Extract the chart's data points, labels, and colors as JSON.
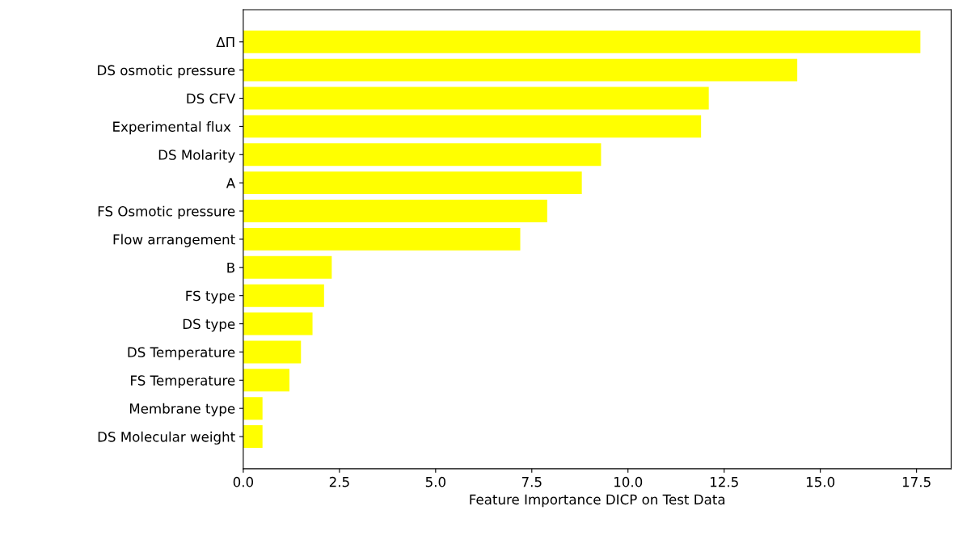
{
  "chart_data": {
    "type": "bar",
    "orientation": "horizontal",
    "xlabel": "Feature Importance DICP on Test Data",
    "categories": [
      "ΔΠ",
      "DS osmotic pressure",
      "DS CFV",
      "Experimental flux ",
      "DS Molarity",
      "A",
      "FS Osmotic pressure",
      "Flow arrangement",
      "B",
      "FS type",
      "DS type",
      "DS Temperature",
      "FS Temperature",
      "Membrane type",
      "DS Molecular weight"
    ],
    "values": [
      17.6,
      14.4,
      12.1,
      11.9,
      9.3,
      8.8,
      7.9,
      7.2,
      2.3,
      2.1,
      1.8,
      1.5,
      1.2,
      0.5,
      0.5
    ],
    "color": "#ffff00",
    "xlim": [
      0,
      18.4
    ],
    "xticks": [
      {
        "value": 0,
        "label": "0.0"
      },
      2.5,
      {
        "value": 5,
        "label": "5.0"
      },
      7.5,
      {
        "value": 10,
        "label": "10.0"
      },
      12.5,
      {
        "value": 15,
        "label": "15.0"
      },
      17.5
    ],
    "grid": false
  }
}
